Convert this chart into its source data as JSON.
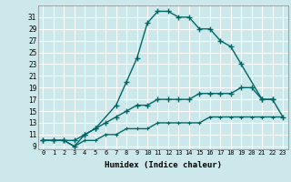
{
  "xlabel": "Humidex (Indice chaleur)",
  "bg_color": "#cce8ea",
  "grid_color": "#ffffff",
  "line_color": "#006666",
  "line1_x": [
    0,
    1,
    2,
    3,
    4,
    5,
    7,
    8,
    9,
    10,
    11,
    12,
    13,
    14,
    15,
    16,
    17,
    18,
    19,
    21,
    22
  ],
  "line1_y": [
    10,
    10,
    10,
    10,
    11,
    12,
    16,
    20,
    24,
    30,
    32,
    32,
    31,
    31,
    29,
    29,
    27,
    26,
    23,
    17,
    17
  ],
  "line2_x": [
    0,
    1,
    2,
    3,
    4,
    5,
    6,
    7,
    8,
    9,
    10,
    11,
    12,
    13,
    14,
    15,
    16,
    17,
    18,
    19,
    20,
    21,
    22,
    23
  ],
  "line2_y": [
    10,
    10,
    10,
    9,
    11,
    12,
    13,
    14,
    15,
    16,
    16,
    17,
    17,
    17,
    17,
    18,
    18,
    18,
    18,
    19,
    19,
    17,
    17,
    14
  ],
  "line3_x": [
    0,
    1,
    2,
    3,
    4,
    5,
    6,
    7,
    8,
    9,
    10,
    11,
    12,
    13,
    14,
    15,
    16,
    17,
    18,
    19,
    20,
    21,
    22,
    23
  ],
  "line3_y": [
    10,
    10,
    10,
    9,
    10,
    10,
    11,
    11,
    12,
    12,
    12,
    13,
    13,
    13,
    13,
    13,
    14,
    14,
    14,
    14,
    14,
    14,
    14,
    14
  ],
  "xlim": [
    -0.5,
    23.5
  ],
  "ylim": [
    8.5,
    33
  ],
  "yticks": [
    9,
    11,
    13,
    15,
    17,
    19,
    21,
    23,
    25,
    27,
    29,
    31
  ],
  "xticks": [
    0,
    1,
    2,
    3,
    4,
    5,
    6,
    7,
    8,
    9,
    10,
    11,
    12,
    13,
    14,
    15,
    16,
    17,
    18,
    19,
    20,
    21,
    22,
    23
  ]
}
